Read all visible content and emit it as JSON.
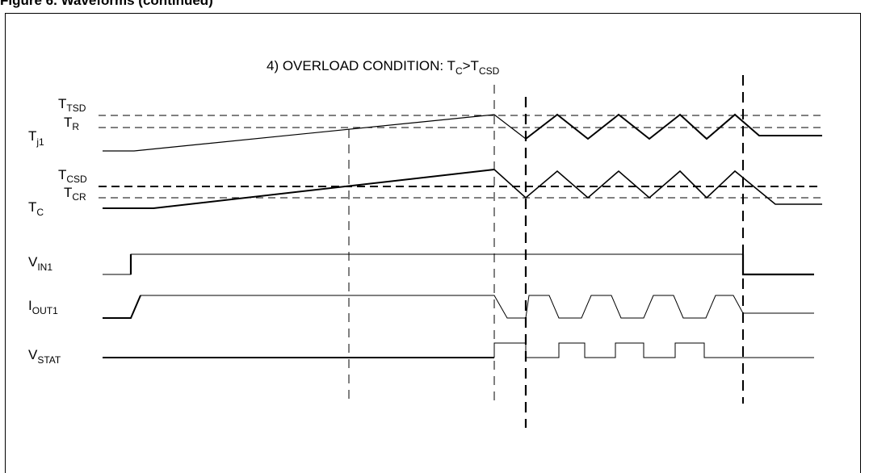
{
  "figure": {
    "caption": "Figure 6. Waveforms (continued)"
  },
  "diagram": {
    "title": {
      "main": "4) OVERLOAD CONDITION: T",
      "sub1": "C",
      "mid": ">T",
      "sub2": "CSD"
    },
    "labels": {
      "ttsd": {
        "main": "T",
        "sub": "TSD"
      },
      "tr": {
        "main": "T",
        "sub": "R"
      },
      "tj1": {
        "main": "T",
        "sub": "j1"
      },
      "tcsd": {
        "main": "T",
        "sub": "CSD"
      },
      "tcr": {
        "main": "T",
        "sub": "CR"
      },
      "tc": {
        "main": "T",
        "sub": "C"
      },
      "vin1": {
        "main": "V",
        "sub": "IN1"
      },
      "iout1": {
        "main": "I",
        "sub": "OUT1"
      },
      "vstat": {
        "main": "V",
        "sub": "STAT"
      }
    }
  }
}
